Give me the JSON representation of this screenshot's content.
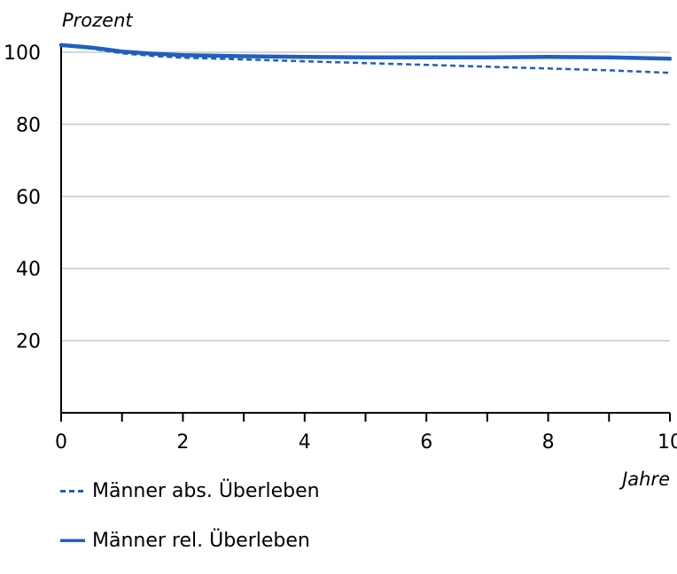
{
  "chart_data": {
    "type": "line",
    "ylabel": "Prozent",
    "xlabel": "Jahre",
    "xlim": [
      0,
      10
    ],
    "ylim": [
      0,
      100
    ],
    "x_ticks": [
      0,
      2,
      4,
      6,
      8,
      10
    ],
    "y_ticks": [
      20,
      40,
      60,
      80,
      100
    ],
    "grid": "horizontal",
    "legend_position": "bottom-left",
    "series": [
      {
        "name": "Männer abs. Überleben",
        "style": "dashed",
        "color": "#1f5fbf",
        "x": [
          0,
          0.5,
          1,
          1.5,
          2,
          3,
          4,
          5,
          6,
          7,
          8,
          9,
          10
        ],
        "y": [
          102,
          101,
          99.7,
          99.0,
          98.5,
          98.0,
          97.5,
          97.0,
          96.5,
          96.0,
          95.5,
          95.0,
          94.3
        ]
      },
      {
        "name": "Männer rel. Überleben",
        "style": "solid",
        "color": "#1f5fbf",
        "x": [
          0,
          0.5,
          1,
          1.5,
          2,
          3,
          4,
          5,
          6,
          7,
          8,
          9,
          10
        ],
        "y": [
          102,
          101.3,
          100.2,
          99.6,
          99.2,
          98.9,
          98.7,
          98.6,
          98.6,
          98.6,
          98.7,
          98.6,
          98.2
        ]
      }
    ]
  }
}
